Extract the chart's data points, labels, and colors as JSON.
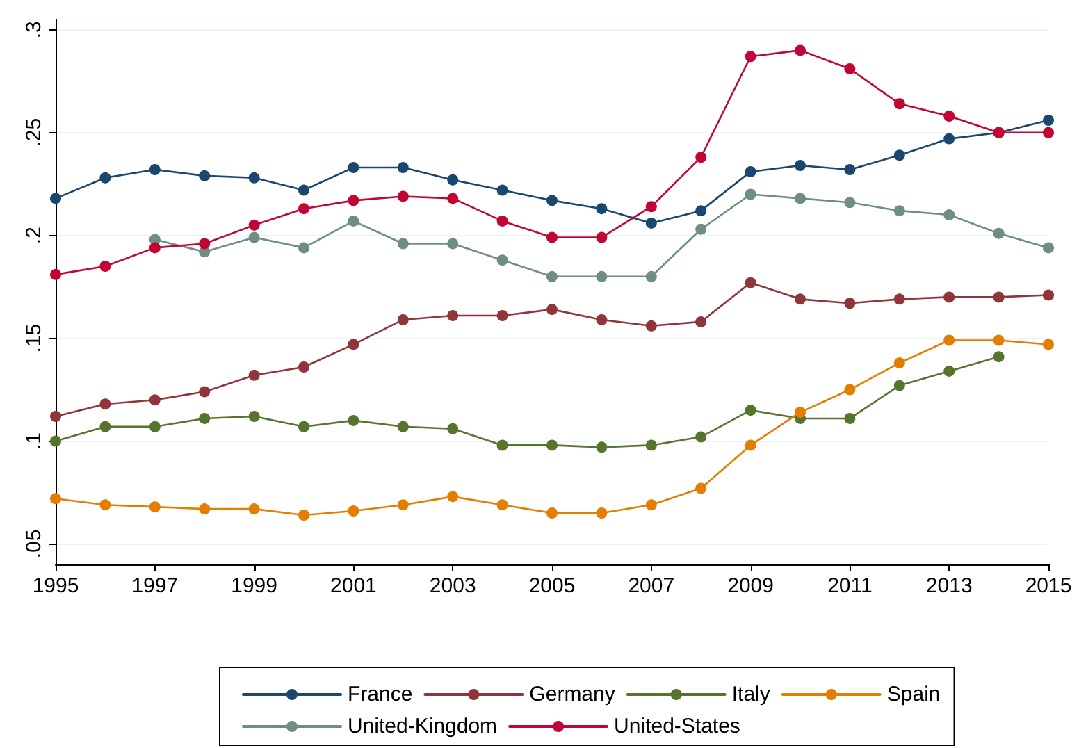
{
  "chart_data": {
    "type": "line",
    "x": [
      1995,
      1996,
      1997,
      1998,
      1999,
      2000,
      2001,
      2002,
      2003,
      2004,
      2005,
      2006,
      2007,
      2008,
      2009,
      2010,
      2011,
      2012,
      2013,
      2014,
      2015
    ],
    "series": [
      {
        "name": "France",
        "color": "#1a476f",
        "values": [
          0.218,
          0.228,
          0.232,
          0.229,
          0.228,
          0.222,
          0.233,
          0.233,
          0.227,
          0.222,
          0.217,
          0.213,
          0.206,
          0.212,
          0.231,
          0.234,
          0.232,
          0.239,
          0.247,
          0.25,
          0.256
        ]
      },
      {
        "name": "Germany",
        "color": "#90353b",
        "values": [
          0.112,
          0.118,
          0.12,
          0.124,
          0.132,
          0.136,
          0.147,
          0.159,
          0.161,
          0.161,
          0.164,
          0.159,
          0.156,
          0.158,
          0.177,
          0.169,
          0.167,
          0.169,
          0.17,
          0.17,
          0.171
        ]
      },
      {
        "name": "Italy",
        "color": "#55752f",
        "values": [
          0.1,
          0.107,
          0.107,
          0.111,
          0.112,
          0.107,
          0.11,
          0.107,
          0.106,
          0.098,
          0.098,
          0.097,
          0.098,
          0.102,
          0.115,
          0.111,
          0.111,
          0.127,
          0.134,
          0.141,
          null
        ]
      },
      {
        "name": "Spain",
        "color": "#e37e00",
        "values": [
          0.072,
          0.069,
          0.068,
          0.067,
          0.067,
          0.064,
          0.066,
          0.069,
          0.073,
          0.069,
          0.065,
          0.065,
          0.069,
          0.077,
          0.098,
          0.114,
          0.125,
          0.138,
          0.149,
          0.149,
          0.147
        ]
      },
      {
        "name": "United-Kingdom",
        "color": "#6e8e84",
        "values": [
          null,
          null,
          0.198,
          0.192,
          0.199,
          0.194,
          0.207,
          0.196,
          0.196,
          0.188,
          0.18,
          0.18,
          0.18,
          0.203,
          0.22,
          0.218,
          0.216,
          0.212,
          0.21,
          0.201,
          0.194
        ]
      },
      {
        "name": "United-States",
        "color": "#c10534",
        "values": [
          0.181,
          0.185,
          0.194,
          0.196,
          0.205,
          0.213,
          0.217,
          0.219,
          0.218,
          0.207,
          0.199,
          0.199,
          0.214,
          0.238,
          0.287,
          0.29,
          0.281,
          0.264,
          0.258,
          0.25,
          0.25
        ]
      }
    ],
    "xlim": [
      1995,
      2015
    ],
    "xticks": [
      1995,
      1997,
      1999,
      2001,
      2003,
      2005,
      2007,
      2009,
      2011,
      2013,
      2015
    ],
    "ylim": [
      0.04,
      0.305
    ],
    "yticks": [
      {
        "value": 0.05,
        "label": ".05"
      },
      {
        "value": 0.1,
        "label": ".1"
      },
      {
        "value": 0.15,
        "label": ".15"
      },
      {
        "value": 0.2,
        "label": ".2"
      },
      {
        "value": 0.25,
        "label": ".25"
      },
      {
        "value": 0.3,
        "label": ".3"
      }
    ],
    "grid": "y",
    "legend": "bottom",
    "marker": "circle",
    "line_style": "solid"
  }
}
